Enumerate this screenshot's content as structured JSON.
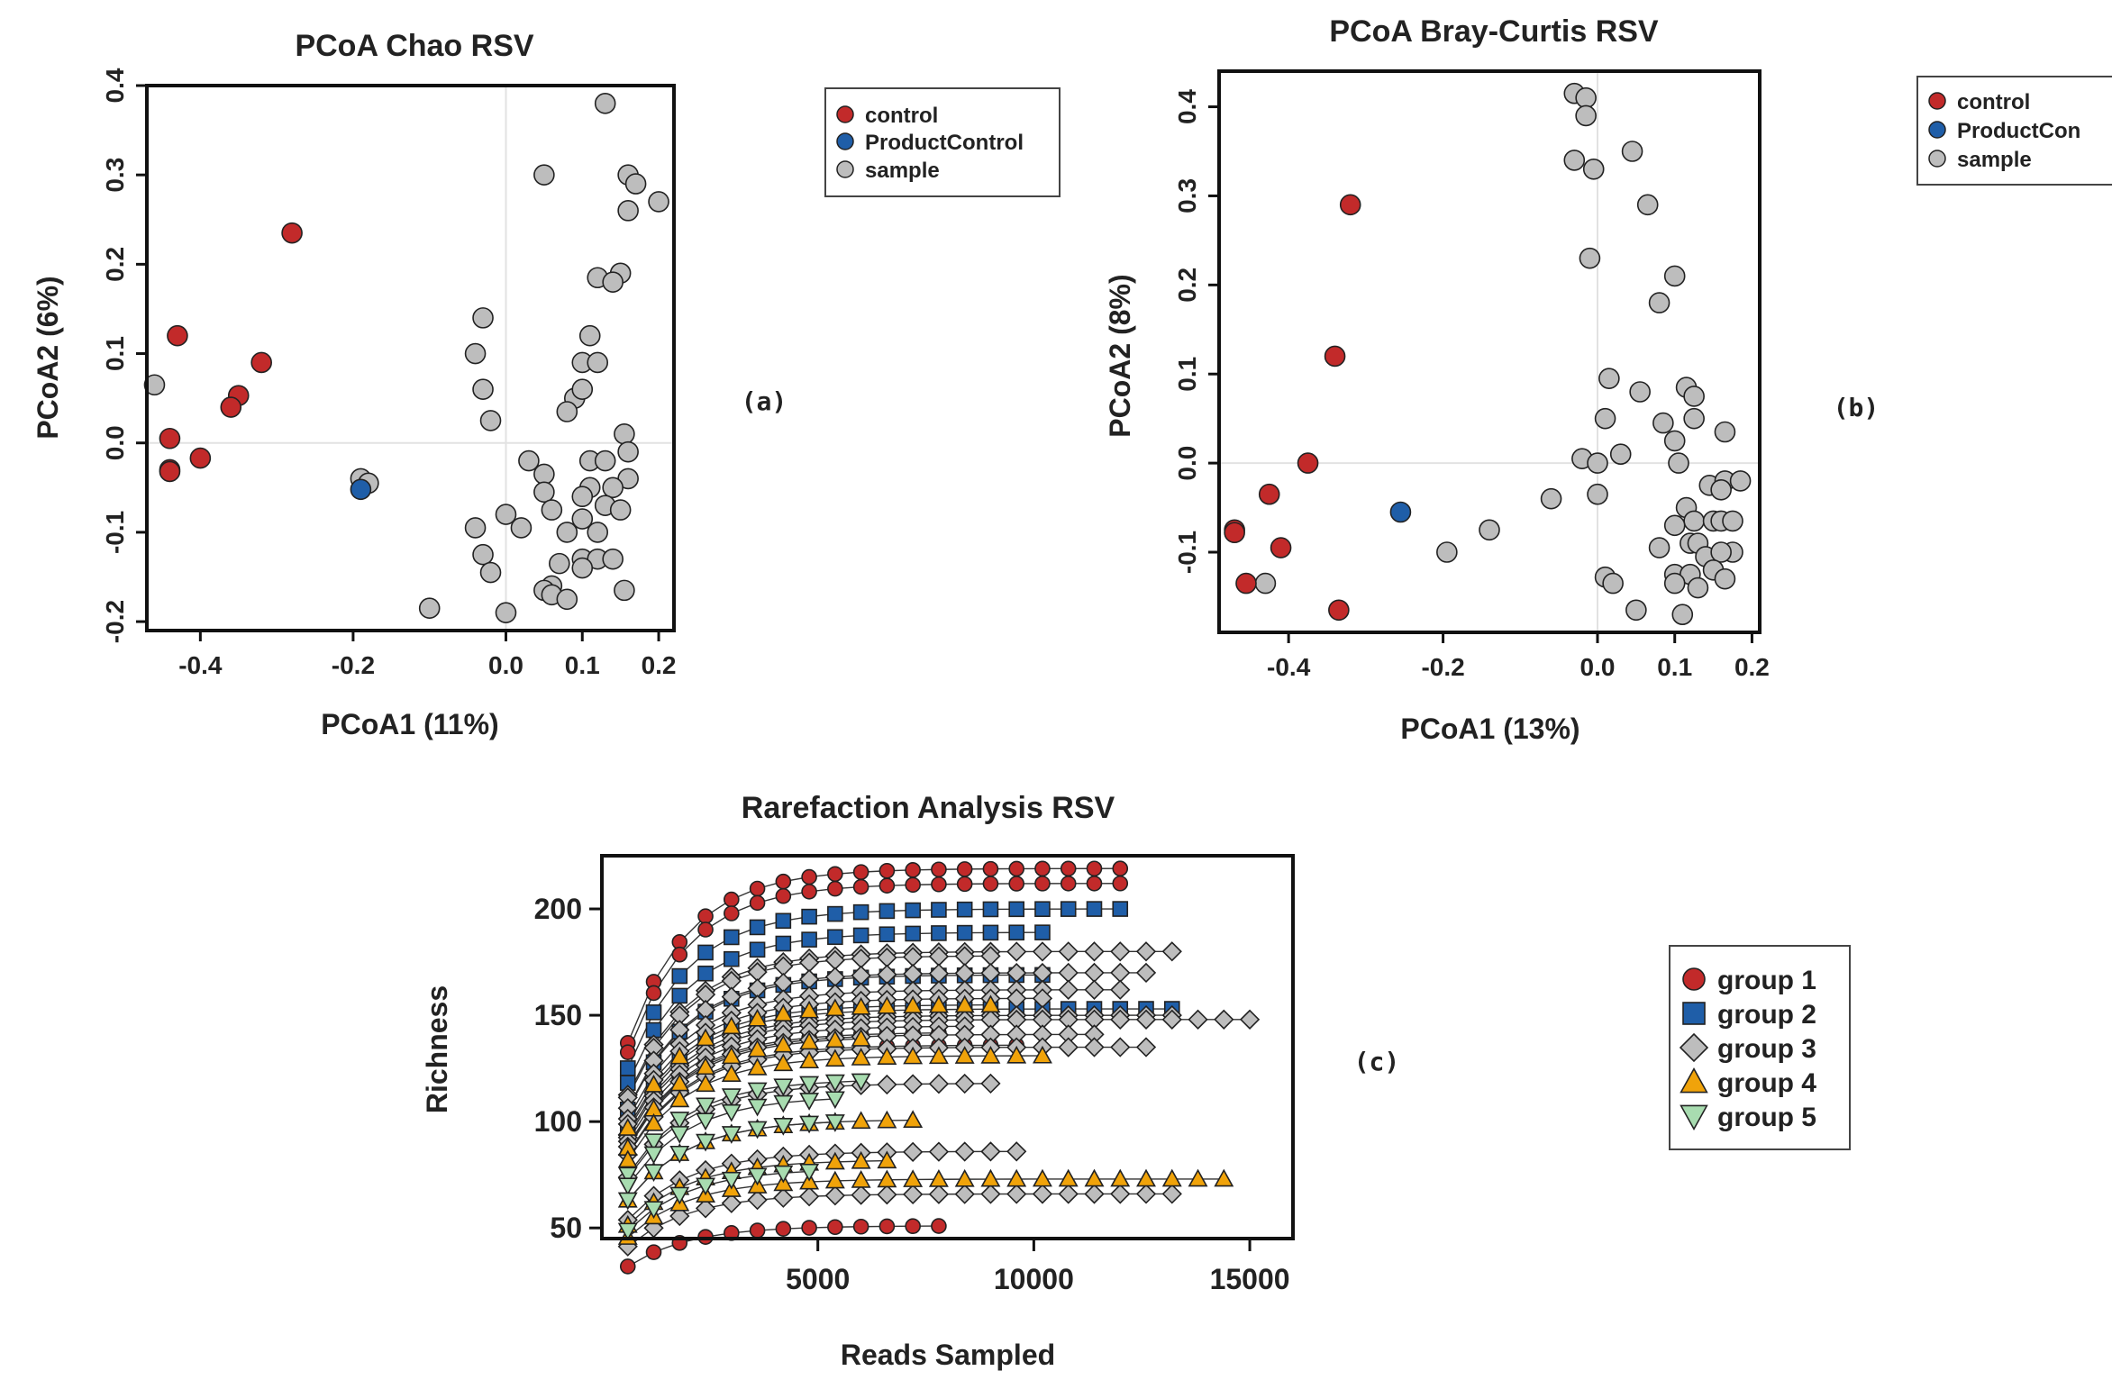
{
  "chart_data": [
    {
      "type": "scatter",
      "title": "PCoA Chao  RSV",
      "xlabel": "PCoA1 (11%)",
      "ylabel": "PCoA2 (6%)",
      "panel_label": "(a)",
      "xlim": [
        -0.47,
        0.22
      ],
      "ylim": [
        -0.21,
        0.4
      ],
      "xticks": [
        -0.4,
        -0.2,
        0.0,
        0.1,
        0.2
      ],
      "xtick_labels": [
        "-0.4",
        "-0.2",
        "0.0",
        "0.1",
        "0.2"
      ],
      "yticks": [
        -0.2,
        -0.1,
        0.0,
        0.1,
        0.2,
        0.3,
        0.4
      ],
      "ytick_labels": [
        "-0.2",
        "-0.1",
        "0.0",
        "0.1",
        "0.2",
        "0.3",
        "0.4"
      ],
      "legend": [
        "control",
        "ProductControl",
        "sample"
      ],
      "series": [
        {
          "name": "sample",
          "color": "#bdbdbd",
          "points": [
            [
              0.13,
              0.38
            ],
            [
              0.05,
              0.3
            ],
            [
              0.16,
              0.3
            ],
            [
              0.17,
              0.29
            ],
            [
              0.2,
              0.27
            ],
            [
              0.16,
              0.26
            ],
            [
              0.15,
              0.19
            ],
            [
              0.12,
              0.185
            ],
            [
              0.14,
              0.18
            ],
            [
              -0.03,
              0.14
            ],
            [
              0.11,
              0.12
            ],
            [
              -0.04,
              0.1
            ],
            [
              0.1,
              0.09
            ],
            [
              0.12,
              0.09
            ],
            [
              0.09,
              0.05
            ],
            [
              -0.03,
              0.06
            ],
            [
              0.08,
              0.035
            ],
            [
              0.1,
              0.06
            ],
            [
              -0.02,
              0.025
            ],
            [
              0.155,
              0.01
            ],
            [
              0.16,
              -0.01
            ],
            [
              0.11,
              -0.02
            ],
            [
              0.03,
              -0.02
            ],
            [
              0.13,
              -0.02
            ],
            [
              0.05,
              -0.035
            ],
            [
              0.16,
              -0.04
            ],
            [
              0.11,
              -0.05
            ],
            [
              0.14,
              -0.05
            ],
            [
              0.05,
              -0.055
            ],
            [
              0.1,
              -0.06
            ],
            [
              0.13,
              -0.07
            ],
            [
              0.06,
              -0.075
            ],
            [
              0.15,
              -0.075
            ],
            [
              0.0,
              -0.08
            ],
            [
              0.1,
              -0.085
            ],
            [
              -0.04,
              -0.095
            ],
            [
              0.02,
              -0.095
            ],
            [
              0.08,
              -0.1
            ],
            [
              0.12,
              -0.1
            ],
            [
              -0.03,
              -0.125
            ],
            [
              0.1,
              -0.13
            ],
            [
              0.12,
              -0.13
            ],
            [
              0.14,
              -0.13
            ],
            [
              0.07,
              -0.135
            ],
            [
              0.1,
              -0.14
            ],
            [
              -0.02,
              -0.145
            ],
            [
              0.06,
              -0.16
            ],
            [
              0.05,
              -0.165
            ],
            [
              0.155,
              -0.165
            ],
            [
              0.06,
              -0.17
            ],
            [
              0.08,
              -0.175
            ],
            [
              -0.1,
              -0.185
            ],
            [
              0.0,
              -0.19
            ],
            [
              -0.19,
              -0.04
            ],
            [
              -0.18,
              -0.045
            ],
            [
              -0.46,
              0.065
            ]
          ]
        },
        {
          "name": "control",
          "color": "#c22a2a",
          "points": [
            [
              -0.28,
              0.235
            ],
            [
              -0.43,
              0.12
            ],
            [
              -0.32,
              0.09
            ],
            [
              -0.35,
              0.053
            ],
            [
              -0.36,
              0.04
            ],
            [
              -0.44,
              0.005
            ],
            [
              -0.4,
              -0.017
            ],
            [
              -0.44,
              -0.03
            ],
            [
              -0.44,
              -0.032
            ]
          ]
        },
        {
          "name": "ProductControl",
          "color": "#1f5ea8",
          "points": [
            [
              -0.19,
              -0.052
            ]
          ]
        }
      ]
    },
    {
      "type": "scatter",
      "title": "PCoA Bray-Curtis  RSV",
      "xlabel": "PCoA1 (13%)",
      "ylabel": "PCoA2 (8%)",
      "panel_label": "(b)",
      "xlim": [
        -0.49,
        0.21
      ],
      "ylim": [
        -0.19,
        0.44
      ],
      "xticks": [
        -0.4,
        -0.2,
        0.0,
        0.1,
        0.2
      ],
      "xtick_labels": [
        "-0.4",
        "-0.2",
        "0.0",
        "0.1",
        "0.2"
      ],
      "yticks": [
        -0.1,
        0.0,
        0.1,
        0.2,
        0.3,
        0.4
      ],
      "ytick_labels": [
        "-0.1",
        "0.0",
        "0.1",
        "0.2",
        "0.3",
        "0.4"
      ],
      "legend": [
        "control",
        "ProductCon"
      ],
      "legend_extra": "sample",
      "series": [
        {
          "name": "sample",
          "color": "#bdbdbd",
          "points": [
            [
              -0.03,
              0.415
            ],
            [
              -0.015,
              0.41
            ],
            [
              -0.015,
              0.39
            ],
            [
              -0.03,
              0.34
            ],
            [
              0.045,
              0.35
            ],
            [
              -0.005,
              0.33
            ],
            [
              0.065,
              0.29
            ],
            [
              -0.01,
              0.23
            ],
            [
              0.1,
              0.21
            ],
            [
              0.08,
              0.18
            ],
            [
              0.015,
              0.095
            ],
            [
              0.115,
              0.085
            ],
            [
              0.125,
              0.075
            ],
            [
              0.055,
              0.08
            ],
            [
              0.01,
              0.05
            ],
            [
              0.085,
              0.045
            ],
            [
              0.125,
              0.05
            ],
            [
              0.165,
              0.035
            ],
            [
              0.1,
              0.025
            ],
            [
              0.03,
              0.01
            ],
            [
              -0.02,
              0.005
            ],
            [
              0.0,
              0.0
            ],
            [
              0.105,
              0.0
            ],
            [
              0.145,
              -0.025
            ],
            [
              0.165,
              -0.02
            ],
            [
              0.185,
              -0.02
            ],
            [
              0.16,
              -0.03
            ],
            [
              0.0,
              -0.035
            ],
            [
              -0.06,
              -0.04
            ],
            [
              0.115,
              -0.05
            ],
            [
              0.125,
              -0.065
            ],
            [
              0.15,
              -0.065
            ],
            [
              0.16,
              -0.065
            ],
            [
              0.175,
              -0.065
            ],
            [
              0.1,
              -0.07
            ],
            [
              0.12,
              -0.09
            ],
            [
              0.13,
              -0.09
            ],
            [
              0.08,
              -0.095
            ],
            [
              0.175,
              -0.1
            ],
            [
              0.14,
              -0.105
            ],
            [
              0.16,
              -0.1
            ],
            [
              0.15,
              -0.12
            ],
            [
              0.1,
              -0.125
            ],
            [
              0.12,
              -0.125
            ],
            [
              0.165,
              -0.13
            ],
            [
              0.01,
              -0.128
            ],
            [
              0.02,
              -0.135
            ],
            [
              0.1,
              -0.135
            ],
            [
              0.13,
              -0.14
            ],
            [
              0.05,
              -0.165
            ],
            [
              0.11,
              -0.17
            ],
            [
              -0.14,
              -0.075
            ],
            [
              -0.195,
              -0.1
            ],
            [
              -0.43,
              -0.135
            ]
          ]
        },
        {
          "name": "control",
          "color": "#c22a2a",
          "points": [
            [
              -0.32,
              0.29
            ],
            [
              -0.34,
              0.12
            ],
            [
              -0.375,
              0.0
            ],
            [
              -0.425,
              -0.035
            ],
            [
              -0.47,
              -0.075
            ],
            [
              -0.47,
              -0.078
            ],
            [
              -0.41,
              -0.095
            ],
            [
              -0.455,
              -0.135
            ],
            [
              -0.335,
              -0.165
            ]
          ]
        },
        {
          "name": "ProductControl",
          "color": "#1f5ea8",
          "points": [
            [
              -0.255,
              -0.055
            ]
          ]
        }
      ]
    },
    {
      "type": "scatter",
      "title": "Rarefaction Analysis RSV",
      "xlabel": "Reads Sampled",
      "ylabel": "Richness",
      "panel_label": "(c)",
      "xlim": [
        0,
        16000
      ],
      "ylim": [
        45,
        225
      ],
      "xticks": [
        5000,
        10000,
        15000
      ],
      "xtick_labels": [
        "5000",
        "10000",
        "15000"
      ],
      "yticks": [
        50,
        100,
        150,
        200
      ],
      "ytick_labels": [
        "50",
        "100",
        "150",
        "200"
      ],
      "legend": [
        "group 1",
        "group 2",
        "group 3",
        "group 4",
        "group 5"
      ],
      "markers": {
        "group 1": "circle",
        "group 2": "square",
        "group 3": "diamond",
        "group 4": "triangle-up",
        "group 5": "triangle-down"
      },
      "colors": {
        "group 1": "#c22a2a",
        "group 2": "#1f5ea8",
        "group 3": "#bdbdbd",
        "group 4": "#f0a30a",
        "group 5": "#a8dcb0"
      },
      "curves": [
        {
          "group": "group 1",
          "final": 219,
          "max_reads": 12100
        },
        {
          "group": "group 1",
          "final": 212,
          "max_reads": 12100
        },
        {
          "group": "group 1",
          "final": 142,
          "max_reads": 8000
        },
        {
          "group": "group 1",
          "final": 136,
          "max_reads": 9700
        },
        {
          "group": "group 1",
          "final": 51,
          "max_reads": 7900
        },
        {
          "group": "group 2",
          "final": 200,
          "max_reads": 12100
        },
        {
          "group": "group 2",
          "final": 189,
          "max_reads": 10500
        },
        {
          "group": "group 2",
          "final": 169,
          "max_reads": 10500
        },
        {
          "group": "group 2",
          "final": 153,
          "max_reads": 13300
        },
        {
          "group": "group 3",
          "final": 180,
          "max_reads": 13400
        },
        {
          "group": "group 3",
          "final": 178,
          "max_reads": 9000
        },
        {
          "group": "group 3",
          "final": 170,
          "max_reads": 12700
        },
        {
          "group": "group 3",
          "final": 162,
          "max_reads": 12000
        },
        {
          "group": "group 3",
          "final": 158,
          "max_reads": 10600
        },
        {
          "group": "group 3",
          "final": 150,
          "max_reads": 13300
        },
        {
          "group": "group 3",
          "final": 148,
          "max_reads": 15200
        },
        {
          "group": "group 3",
          "final": 145,
          "max_reads": 8800
        },
        {
          "group": "group 3",
          "final": 141,
          "max_reads": 11900
        },
        {
          "group": "group 3",
          "final": 135,
          "max_reads": 12800
        },
        {
          "group": "group 3",
          "final": 118,
          "max_reads": 9500
        },
        {
          "group": "group 3",
          "final": 86,
          "max_reads": 9600
        },
        {
          "group": "group 3",
          "final": 66,
          "max_reads": 13300
        },
        {
          "group": "group 4",
          "final": 155,
          "max_reads": 9000
        },
        {
          "group": "group 4",
          "final": 140,
          "max_reads": 6500
        },
        {
          "group": "group 4",
          "final": 131,
          "max_reads": 10600
        },
        {
          "group": "group 4",
          "final": 101,
          "max_reads": 7300
        },
        {
          "group": "group 4",
          "final": 82,
          "max_reads": 6800
        },
        {
          "group": "group 4",
          "final": 73,
          "max_reads": 14600
        },
        {
          "group": "group 5",
          "final": 120,
          "max_reads": 6500
        },
        {
          "group": "group 5",
          "final": 112,
          "max_reads": 5400
        },
        {
          "group": "group 5",
          "final": 101,
          "max_reads": 5700
        },
        {
          "group": "group 5",
          "final": 78,
          "max_reads": 5300
        }
      ]
    }
  ]
}
